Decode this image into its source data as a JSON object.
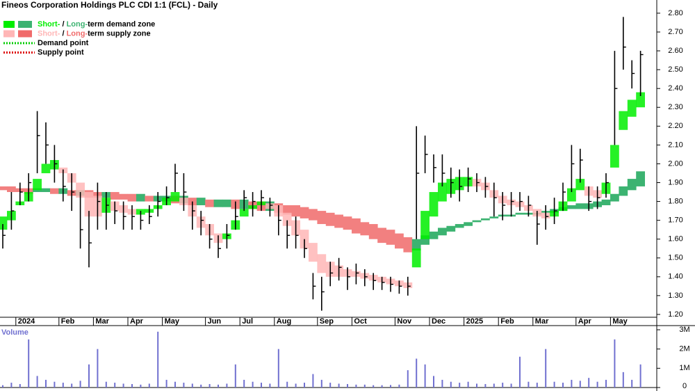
{
  "chart_data": [
    {
      "type": "ohlc",
      "title": "Fineos Corporation Holdings PLC CDI 1:1 (FCL) - Daily",
      "legend": [
        {
          "parts": [
            "Short-",
            " / ",
            "Long-",
            "term demand zone"
          ],
          "colors": [
            "#00ee00",
            "#3cb371"
          ]
        },
        {
          "parts": [
            "Short-",
            " / ",
            "Long-",
            "term supply zone"
          ],
          "colors": [
            "#ffb6b6",
            "#f06a6a"
          ]
        },
        {
          "parts": [
            "Demand point"
          ],
          "colors": [
            "#00cc00"
          ]
        },
        {
          "parts": [
            "Supply point"
          ],
          "colors": [
            "#dd0000"
          ]
        }
      ],
      "categories": [
        null,
        null,
        "2024",
        null,
        null,
        null,
        null,
        "Feb",
        null,
        null,
        null,
        "Mar",
        null,
        null,
        null,
        "Apr",
        null,
        null,
        null,
        "May",
        null,
        null,
        null,
        null,
        "Jun",
        null,
        null,
        null,
        "Jul",
        null,
        null,
        null,
        "Aug",
        null,
        null,
        null,
        null,
        "Sep",
        null,
        null,
        null,
        "Oct",
        null,
        null,
        null,
        null,
        "Nov",
        null,
        null,
        null,
        "Dec",
        null,
        null,
        null,
        "2025",
        null,
        null,
        null,
        "Feb",
        null,
        null,
        null,
        "Mar",
        null,
        null,
        null,
        null,
        "Apr",
        null,
        null,
        null,
        "May",
        null,
        null,
        null
      ],
      "high": [
        1.68,
        1.85,
        1.9,
        1.95,
        2.28,
        2.22,
        2.1,
        1.97,
        1.95,
        1.85,
        1.75,
        1.9,
        1.85,
        1.8,
        1.8,
        1.78,
        1.75,
        1.78,
        1.85,
        1.88,
        2.0,
        1.95,
        1.8,
        1.75,
        1.68,
        1.62,
        1.68,
        1.8,
        1.86,
        1.85,
        1.86,
        1.82,
        1.78,
        1.7,
        1.72,
        1.6,
        1.42,
        1.4,
        1.48,
        1.5,
        1.45,
        1.47,
        1.44,
        1.42,
        1.4,
        1.4,
        1.38,
        1.4,
        2.2,
        2.15,
        2.05,
        2.05,
        1.98,
        1.97,
        1.98,
        1.95,
        1.93,
        1.9,
        1.85,
        1.85,
        1.85,
        1.83,
        1.75,
        1.78,
        1.82,
        1.9,
        2.1,
        2.08,
        1.88,
        1.88,
        1.95,
        2.6,
        2.78,
        2.55,
        2.6
      ],
      "low": [
        1.55,
        1.65,
        1.78,
        1.8,
        1.95,
        2.0,
        1.9,
        1.8,
        1.75,
        1.55,
        1.45,
        1.65,
        1.65,
        1.68,
        1.65,
        1.65,
        1.65,
        1.68,
        1.72,
        1.78,
        1.85,
        1.75,
        1.65,
        1.62,
        1.55,
        1.5,
        1.55,
        1.65,
        1.75,
        1.72,
        1.75,
        1.72,
        1.62,
        1.55,
        1.55,
        1.5,
        1.28,
        1.22,
        1.35,
        1.38,
        1.33,
        1.36,
        1.35,
        1.33,
        1.33,
        1.32,
        1.31,
        1.3,
        1.6,
        1.95,
        1.9,
        1.88,
        1.82,
        1.8,
        1.85,
        1.85,
        1.82,
        1.72,
        1.7,
        1.72,
        1.75,
        1.72,
        1.57,
        1.65,
        1.68,
        1.75,
        1.85,
        1.9,
        1.75,
        1.76,
        1.82,
        2.1,
        2.5,
        2.4,
        2.36
      ],
      "close": [
        1.62,
        1.75,
        1.85,
        1.9,
        2.15,
        2.1,
        2.0,
        1.88,
        1.85,
        1.65,
        1.58,
        1.8,
        1.78,
        1.75,
        1.72,
        1.72,
        1.7,
        1.72,
        1.8,
        1.82,
        1.95,
        1.85,
        1.75,
        1.7,
        1.6,
        1.55,
        1.62,
        1.72,
        1.82,
        1.8,
        1.82,
        1.78,
        1.7,
        1.62,
        1.62,
        1.55,
        1.35,
        1.32,
        1.42,
        1.45,
        1.4,
        1.42,
        1.4,
        1.38,
        1.37,
        1.36,
        1.35,
        1.35,
        1.95,
        2.05,
        1.98,
        1.95,
        1.9,
        1.88,
        1.92,
        1.9,
        1.88,
        1.82,
        1.78,
        1.8,
        1.8,
        1.78,
        1.68,
        1.72,
        1.75,
        1.85,
        2.0,
        2.02,
        1.8,
        1.82,
        1.9,
        2.4,
        2.62,
        2.48,
        2.58
      ],
      "long_zone": {
        "rising_color": "#3cb371",
        "falling_color": "#f28080",
        "upper": [
          1.88,
          1.88,
          1.87,
          1.87,
          1.87,
          1.87,
          1.87,
          1.87,
          1.86,
          1.86,
          1.86,
          1.85,
          1.85,
          1.85,
          1.84,
          1.84,
          1.84,
          1.83,
          1.83,
          1.83,
          1.83,
          1.83,
          1.82,
          1.82,
          1.81,
          1.81,
          1.81,
          1.81,
          1.81,
          1.8,
          1.8,
          1.8,
          1.79,
          1.78,
          1.78,
          1.77,
          1.76,
          1.75,
          1.74,
          1.73,
          1.72,
          1.71,
          1.69,
          1.68,
          1.66,
          1.65,
          1.63,
          1.61,
          1.6,
          1.62,
          1.64,
          1.66,
          1.67,
          1.68,
          1.69,
          1.7,
          1.71,
          1.72,
          1.73,
          1.73,
          1.74,
          1.74,
          1.74,
          1.75,
          1.76,
          1.77,
          1.78,
          1.79,
          1.79,
          1.8,
          1.81,
          1.84,
          1.88,
          1.92,
          1.96
        ],
        "lower": [
          1.86,
          1.85,
          1.85,
          1.84,
          1.85,
          1.85,
          1.84,
          1.84,
          1.83,
          1.83,
          1.82,
          1.82,
          1.82,
          1.81,
          1.81,
          1.8,
          1.8,
          1.8,
          1.8,
          1.8,
          1.79,
          1.79,
          1.78,
          1.78,
          1.77,
          1.77,
          1.77,
          1.76,
          1.76,
          1.76,
          1.75,
          1.75,
          1.74,
          1.73,
          1.72,
          1.71,
          1.7,
          1.68,
          1.67,
          1.66,
          1.65,
          1.63,
          1.62,
          1.6,
          1.58,
          1.57,
          1.55,
          1.53,
          1.54,
          1.57,
          1.6,
          1.62,
          1.64,
          1.66,
          1.67,
          1.69,
          1.7,
          1.71,
          1.72,
          1.72,
          1.73,
          1.73,
          1.73,
          1.74,
          1.74,
          1.75,
          1.76,
          1.76,
          1.76,
          1.77,
          1.78,
          1.8,
          1.83,
          1.86,
          1.88
        ]
      },
      "short_zone": {
        "rising_color": "#00ee00",
        "falling_color": "#ffb6b6",
        "upper": [
          1.72,
          1.75,
          1.8,
          1.85,
          1.92,
          2.0,
          2.02,
          1.98,
          1.95,
          1.9,
          1.85,
          1.83,
          1.82,
          1.8,
          1.78,
          1.76,
          1.76,
          1.76,
          1.78,
          1.82,
          1.85,
          1.82,
          1.78,
          1.72,
          1.68,
          1.63,
          1.63,
          1.7,
          1.76,
          1.78,
          1.8,
          1.79,
          1.78,
          1.74,
          1.7,
          1.65,
          1.58,
          1.52,
          1.48,
          1.46,
          1.44,
          1.43,
          1.42,
          1.41,
          1.4,
          1.39,
          1.38,
          1.37,
          1.55,
          1.75,
          1.85,
          1.9,
          1.92,
          1.93,
          1.93,
          1.92,
          1.9,
          1.86,
          1.83,
          1.81,
          1.8,
          1.78,
          1.76,
          1.74,
          1.75,
          1.8,
          1.87,
          1.92,
          1.88,
          1.86,
          1.9,
          2.1,
          2.28,
          2.34,
          2.38
        ],
        "lower": [
          1.65,
          1.7,
          1.78,
          1.8,
          1.86,
          1.95,
          1.97,
          1.95,
          1.9,
          1.82,
          1.72,
          1.72,
          1.74,
          1.75,
          1.74,
          1.73,
          1.73,
          1.74,
          1.76,
          1.78,
          1.8,
          1.78,
          1.72,
          1.66,
          1.62,
          1.58,
          1.6,
          1.65,
          1.72,
          1.76,
          1.78,
          1.76,
          1.72,
          1.67,
          1.62,
          1.55,
          1.48,
          1.42,
          1.4,
          1.4,
          1.4,
          1.4,
          1.39,
          1.38,
          1.37,
          1.36,
          1.35,
          1.34,
          1.45,
          1.6,
          1.72,
          1.8,
          1.84,
          1.86,
          1.88,
          1.88,
          1.86,
          1.82,
          1.79,
          1.78,
          1.77,
          1.75,
          1.72,
          1.71,
          1.72,
          1.75,
          1.8,
          1.86,
          1.83,
          1.82,
          1.84,
          1.98,
          2.18,
          2.25,
          2.3
        ]
      },
      "bar_color": "#000000",
      "ylim": [
        1.185,
        2.87
      ],
      "yticks": [
        {
          "value": 1.2,
          "label": "1.20"
        },
        {
          "value": 1.3,
          "label": "1.30"
        },
        {
          "value": 1.4,
          "label": "1.40"
        },
        {
          "value": 1.5,
          "label": "1.50"
        },
        {
          "value": 1.6,
          "label": "1.60"
        },
        {
          "value": 1.7,
          "label": "1.70"
        },
        {
          "value": 1.8,
          "label": "1.80"
        },
        {
          "value": 1.9,
          "label": "1.90"
        },
        {
          "value": 2.0,
          "label": "2.00"
        },
        {
          "value": 2.1,
          "label": "2.10"
        },
        {
          "value": 2.2,
          "label": "2.20"
        },
        {
          "value": 2.3,
          "label": "2.30"
        },
        {
          "value": 2.4,
          "label": "2.40"
        },
        {
          "value": 2.5,
          "label": "2.50"
        },
        {
          "value": 2.6,
          "label": "2.60"
        },
        {
          "value": 2.7,
          "label": "2.70"
        },
        {
          "value": 2.8,
          "label": "2.80"
        }
      ]
    },
    {
      "type": "bar",
      "title": "Volume",
      "color": "#7070d0",
      "values": [
        120000,
        250000,
        180000,
        2500000,
        600000,
        400000,
        300000,
        250000,
        200000,
        350000,
        1200000,
        2000000,
        300000,
        250000,
        200000,
        180000,
        150000,
        200000,
        2900000,
        400000,
        300000,
        250000,
        200000,
        150000,
        180000,
        150000,
        200000,
        1200000,
        400000,
        300000,
        250000,
        200000,
        2000000,
        300000,
        200000,
        250000,
        700000,
        400000,
        250000,
        200000,
        180000,
        150000,
        150000,
        120000,
        120000,
        130000,
        150000,
        900000,
        1500000,
        1200000,
        600000,
        400000,
        300000,
        250000,
        300000,
        200000,
        180000,
        200000,
        250000,
        200000,
        1600000,
        300000,
        250000,
        2000000,
        300000,
        250000,
        400000,
        350000,
        500000,
        300000,
        400000,
        2500000,
        800000,
        400000,
        1200000
      ],
      "ylim": [
        0,
        3000000
      ],
      "yticks": [
        {
          "value": 0,
          "label": "0"
        },
        {
          "value": 1000000,
          "label": "1M"
        },
        {
          "value": 2000000,
          "label": "2M"
        },
        {
          "value": 3000000,
          "label": "3M"
        }
      ]
    }
  ]
}
